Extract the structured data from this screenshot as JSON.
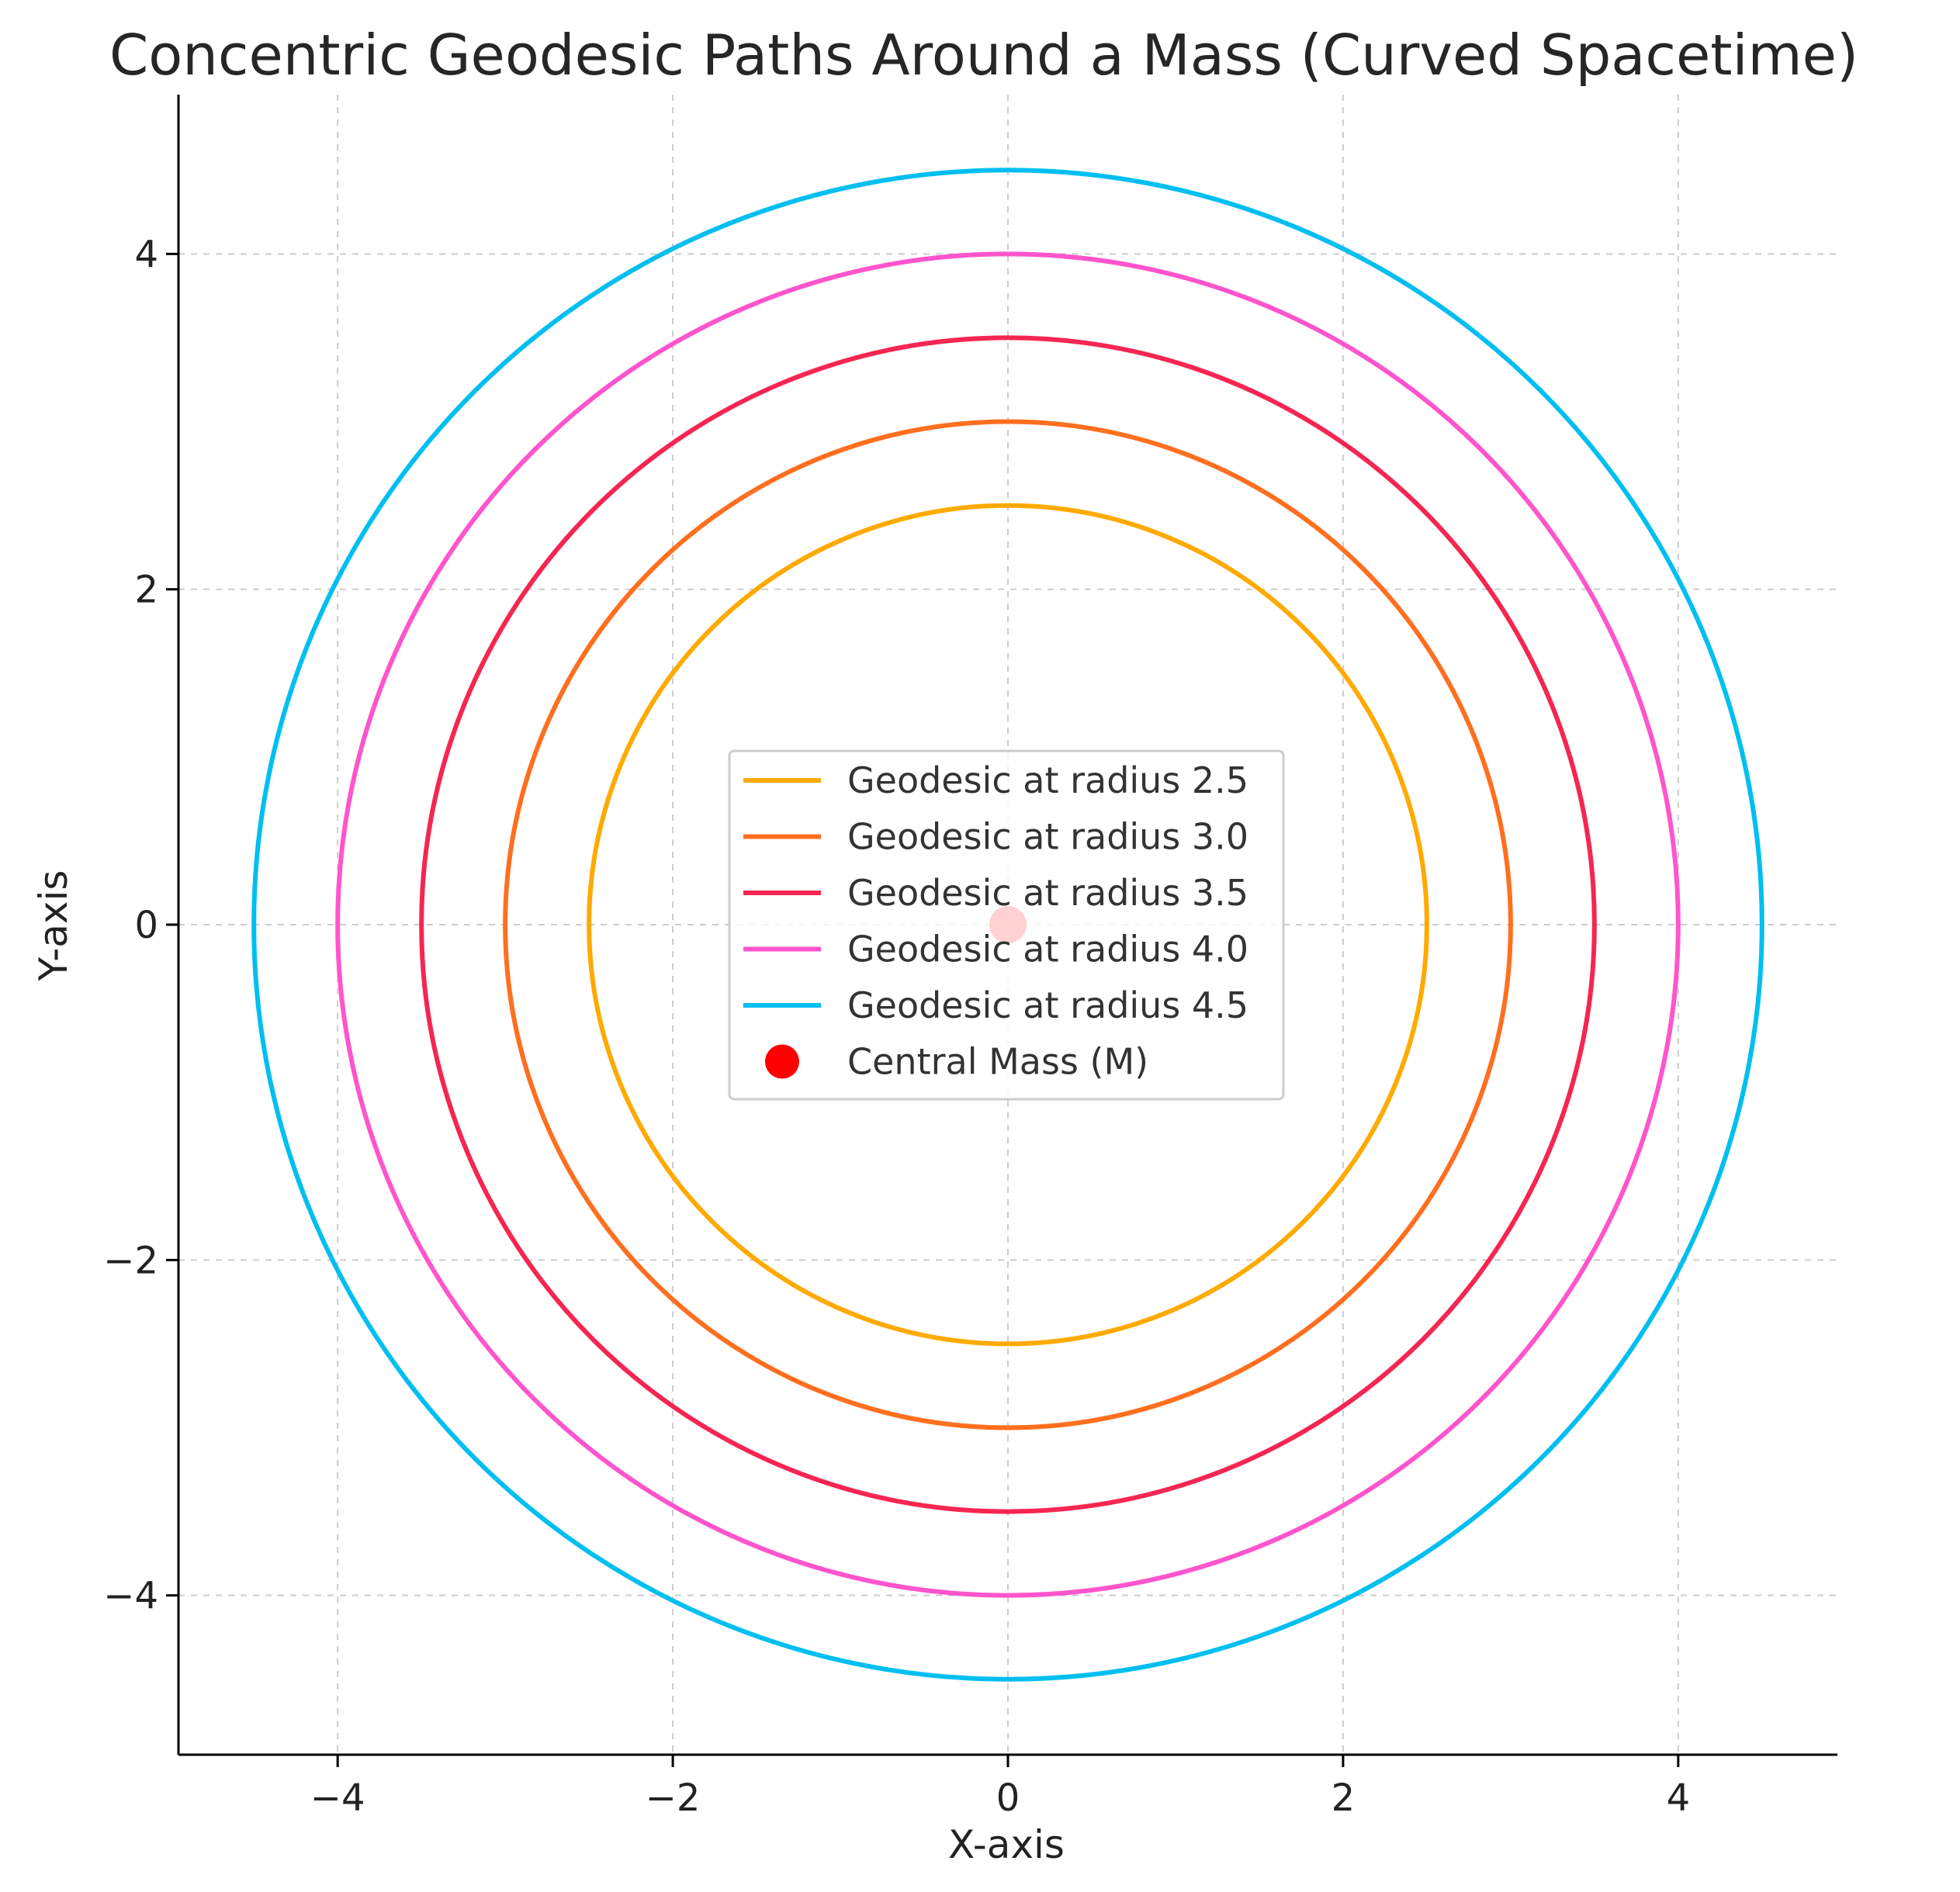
{
  "chart_data": {
    "type": "line",
    "title": "Concentric Geodesic Paths Around a Mass (Curved Spacetime)",
    "xlabel": "X-axis",
    "ylabel": "Y-axis",
    "xlim": [
      -4.95,
      4.95
    ],
    "ylim": [
      -4.95,
      4.95
    ],
    "xticks": [
      -4,
      -2,
      0,
      2,
      4
    ],
    "yticks": [
      -4,
      -2,
      0,
      2,
      4
    ],
    "xtick_labels": [
      "−4",
      "−2",
      "0",
      "2",
      "4"
    ],
    "ytick_labels": [
      "−4",
      "−2",
      "0",
      "2",
      "4"
    ],
    "grid": true,
    "legend_position": "center",
    "series": [
      {
        "name": "Geodesic at radius 2.5",
        "shape": "circle",
        "center": [
          0,
          0
        ],
        "radius": 2.5,
        "color": "#FFAA00"
      },
      {
        "name": "Geodesic at radius 3.0",
        "shape": "circle",
        "center": [
          0,
          0
        ],
        "radius": 3.0,
        "color": "#FF6F1F"
      },
      {
        "name": "Geodesic at radius 3.5",
        "shape": "circle",
        "center": [
          0,
          0
        ],
        "radius": 3.5,
        "color": "#F52652"
      },
      {
        "name": "Geodesic at radius 4.0",
        "shape": "circle",
        "center": [
          0,
          0
        ],
        "radius": 4.0,
        "color": "#FF55CC"
      },
      {
        "name": "Geodesic at radius 4.5",
        "shape": "circle",
        "center": [
          0,
          0
        ],
        "radius": 4.5,
        "color": "#00BFF0"
      }
    ],
    "points": [
      {
        "name": "Central Mass (M)",
        "x": 0,
        "y": 0,
        "color": "#FF0000",
        "marker": "circle"
      }
    ]
  }
}
